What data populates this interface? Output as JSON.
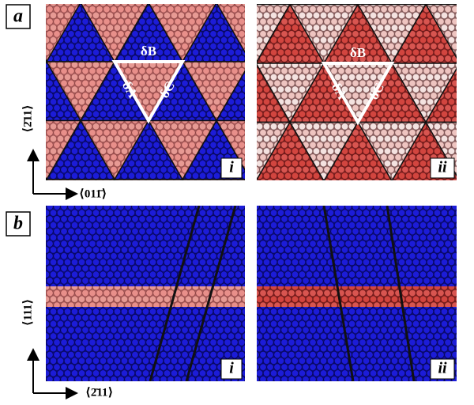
{
  "panel_a": {
    "label": "a",
    "subpanels": [
      {
        "label": "i"
      },
      {
        "label": "ii"
      }
    ],
    "triangle_labels": [
      "δB",
      "δA",
      "δC"
    ],
    "axes": {
      "vertical": "⟨2̄11⟩",
      "horizontal": "⟨011̄⟩"
    }
  },
  "panel_b": {
    "label": "b",
    "subpanels": [
      {
        "label": "i"
      },
      {
        "label": "ii"
      }
    ],
    "axes": {
      "vertical": "⟨111⟩",
      "horizontal": "⟨2̄11⟩"
    }
  }
}
